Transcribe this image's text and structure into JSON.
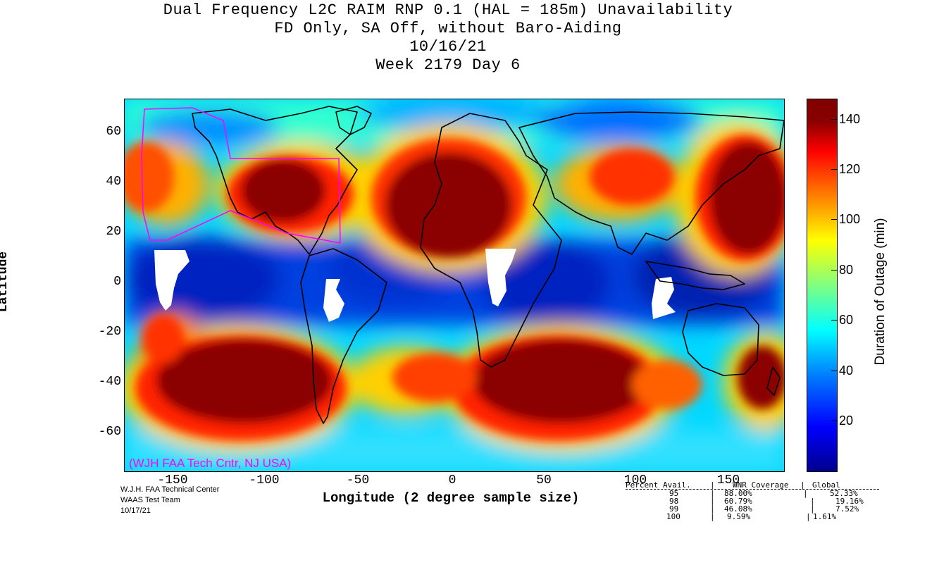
{
  "title": {
    "line1": "Dual Frequency L2C RAIM RNP 0.1 (HAL = 185m) Unavailability",
    "line2": "FD Only, SA Off, without Baro-Aiding",
    "line3": "10/16/21",
    "line4": "Week 2179 Day 6"
  },
  "axes": {
    "ylabel": "Latitude",
    "xlabel": "Longitude (2 degree sample size)",
    "yticks": [
      "60",
      "40",
      "20",
      "0",
      "-20",
      "-40",
      "-60"
    ],
    "xticks": [
      "-150",
      "-100",
      "-50",
      "0",
      "50",
      "100",
      "150"
    ],
    "xlim": [
      -180,
      180
    ],
    "ylim": [
      -75,
      74
    ]
  },
  "colorbar": {
    "label": "Duration of Outage (min)",
    "ticks": [
      "140",
      "120",
      "100",
      "80",
      "60",
      "40",
      "20"
    ],
    "range": [
      0,
      150
    ],
    "colors": [
      "#00008f",
      "#0000ff",
      "#0080ff",
      "#00ffff",
      "#80ff80",
      "#ffff00",
      "#ff8000",
      "#ff0000",
      "#8b0000"
    ]
  },
  "map_overlay": {
    "watermark": "(WJH FAA Tech Cntr, NJ USA)",
    "watermark_color": "#ff00ff",
    "coast_color": "#000000",
    "service_boundary_color": "#ff00ff"
  },
  "credit": {
    "line1": "W.J.H. FAA Technical Center",
    "line2": "WAAS Test Team",
    "line3": "10/17/21"
  },
  "stats": {
    "headers": [
      "Percent Avail.",
      "WNR Coverage",
      "Global"
    ],
    "rows": [
      {
        "pct": "95",
        "wnr": "88.00%",
        "global": "52.33%"
      },
      {
        "pct": "98",
        "wnr": "60.79%",
        "global": "19.16%"
      },
      {
        "pct": "99",
        "wnr": "46.08%",
        "global": "7.52%"
      },
      {
        "pct": "100",
        "wnr": "9.59%",
        "global": "1.61%"
      }
    ]
  }
}
